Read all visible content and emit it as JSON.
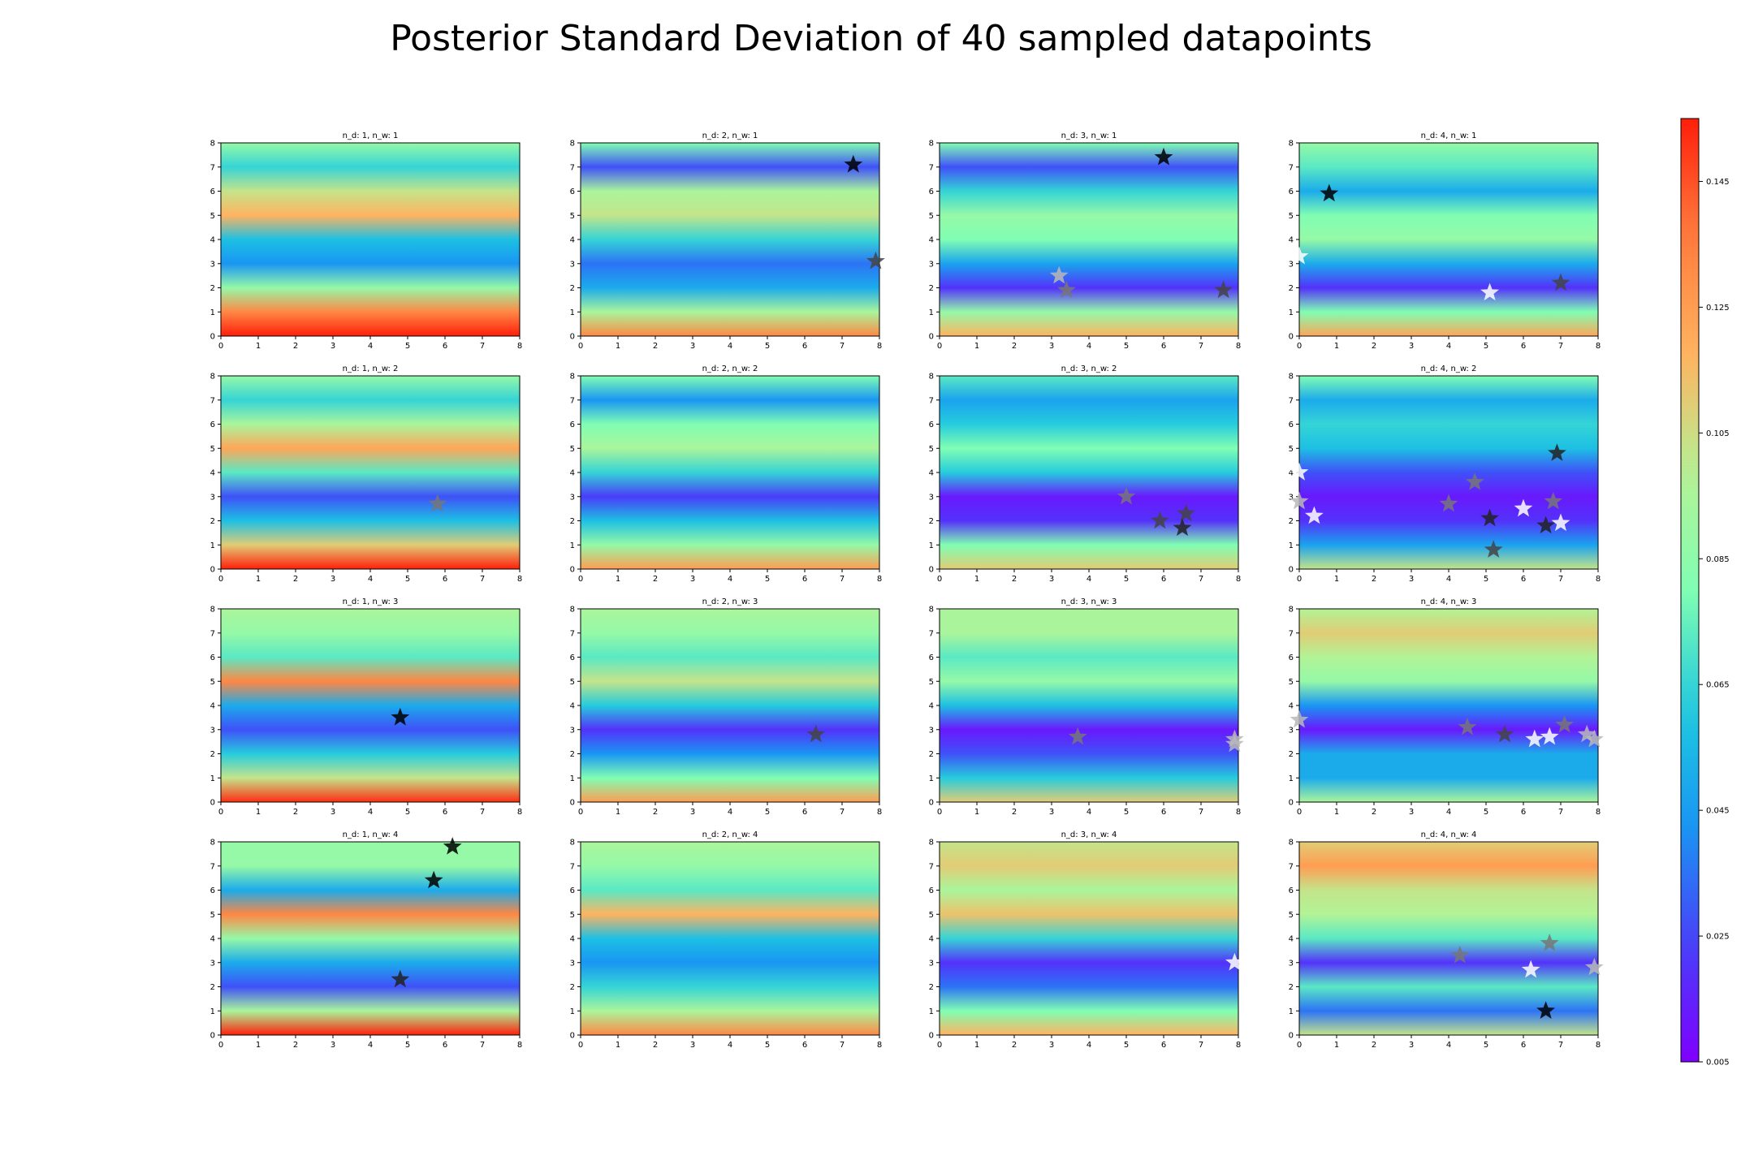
{
  "figure": {
    "title": "Posterior Standard Deviation of 40 sampled datapoints"
  },
  "colorbar": {
    "ticks": [
      "0.005",
      "0.025",
      "0.045",
      "0.065",
      "0.085",
      "0.105",
      "0.125",
      "0.145"
    ],
    "range": [
      0.005,
      0.155
    ],
    "colormap": "rainbow"
  },
  "chart_data": {
    "type": "heatmap",
    "title": "Posterior Standard Deviation of 40 sampled datapoints",
    "grid": {
      "rows": 4,
      "cols": 4
    },
    "xlim": [
      0,
      8
    ],
    "ylim": [
      0,
      8
    ],
    "x_ticks": [
      "0",
      "1",
      "2",
      "3",
      "4",
      "5",
      "6",
      "7",
      "8"
    ],
    "y_ticks": [
      "0",
      "1",
      "2",
      "3",
      "4",
      "5",
      "6",
      "7",
      "8"
    ],
    "panels": [
      {
        "title": "n_d: 1, n_w: 1",
        "points": []
      },
      {
        "title": "n_d: 2, n_w: 1",
        "points": [
          {
            "x": 7.3,
            "y": 7.1,
            "shade": "black"
          },
          {
            "x": 7.9,
            "y": 3.1,
            "shade": "dimgray"
          }
        ]
      },
      {
        "title": "n_d: 3, n_w: 1",
        "points": [
          {
            "x": 6.0,
            "y": 7.4,
            "shade": "black"
          },
          {
            "x": 3.2,
            "y": 2.5,
            "shade": "silver"
          },
          {
            "x": 3.4,
            "y": 1.9,
            "shade": "gray"
          },
          {
            "x": 7.6,
            "y": 1.9,
            "shade": "dimgray"
          }
        ]
      },
      {
        "title": "n_d: 4, n_w: 1",
        "points": [
          {
            "x": 0.8,
            "y": 5.9,
            "shade": "black"
          },
          {
            "x": 0.0,
            "y": 3.3,
            "shade": "white"
          },
          {
            "x": 5.1,
            "y": 1.8,
            "shade": "white"
          },
          {
            "x": 7.0,
            "y": 2.2,
            "shade": "dimgray"
          }
        ]
      },
      {
        "title": "n_d: 1, n_w: 2",
        "points": [
          {
            "x": 5.8,
            "y": 2.7,
            "shade": "gray"
          }
        ]
      },
      {
        "title": "n_d: 2, n_w: 2",
        "points": []
      },
      {
        "title": "n_d: 3, n_w: 2",
        "points": [
          {
            "x": 5.0,
            "y": 3.0,
            "shade": "gray"
          },
          {
            "x": 5.9,
            "y": 2.0,
            "shade": "dimgray"
          },
          {
            "x": 6.6,
            "y": 2.3,
            "shade": "dimgray"
          },
          {
            "x": 6.5,
            "y": 1.7,
            "shade": "darkgray"
          }
        ]
      },
      {
        "title": "n_d: 4, n_w: 2",
        "points": [
          {
            "x": 6.9,
            "y": 4.8,
            "shade": "darkgray"
          },
          {
            "x": 0.0,
            "y": 4.0,
            "shade": "white"
          },
          {
            "x": 0.0,
            "y": 2.8,
            "shade": "silver"
          },
          {
            "x": 0.4,
            "y": 2.2,
            "shade": "white"
          },
          {
            "x": 4.7,
            "y": 3.6,
            "shade": "gray"
          },
          {
            "x": 4.0,
            "y": 2.7,
            "shade": "gray"
          },
          {
            "x": 5.1,
            "y": 2.1,
            "shade": "darkgray"
          },
          {
            "x": 5.2,
            "y": 0.8,
            "shade": "dimgray"
          },
          {
            "x": 6.0,
            "y": 2.5,
            "shade": "white"
          },
          {
            "x": 6.8,
            "y": 2.8,
            "shade": "gray"
          },
          {
            "x": 6.6,
            "y": 1.8,
            "shade": "darkgray"
          },
          {
            "x": 7.0,
            "y": 1.9,
            "shade": "white"
          }
        ]
      },
      {
        "title": "n_d: 1, n_w: 3",
        "points": [
          {
            "x": 4.8,
            "y": 3.5,
            "shade": "black"
          }
        ]
      },
      {
        "title": "n_d: 2, n_w: 3",
        "points": [
          {
            "x": 6.3,
            "y": 2.8,
            "shade": "dimgray"
          }
        ]
      },
      {
        "title": "n_d: 3, n_w: 3",
        "points": [
          {
            "x": 3.7,
            "y": 2.7,
            "shade": "gray"
          },
          {
            "x": 7.9,
            "y": 2.6,
            "shade": "silver"
          },
          {
            "x": 7.9,
            "y": 2.4,
            "shade": "silver"
          }
        ]
      },
      {
        "title": "n_d: 4, n_w: 3",
        "points": [
          {
            "x": 0.0,
            "y": 3.4,
            "shade": "silver"
          },
          {
            "x": 4.5,
            "y": 3.1,
            "shade": "gray"
          },
          {
            "x": 5.5,
            "y": 2.8,
            "shade": "dimgray"
          },
          {
            "x": 6.3,
            "y": 2.6,
            "shade": "white"
          },
          {
            "x": 6.7,
            "y": 2.7,
            "shade": "white"
          },
          {
            "x": 7.1,
            "y": 3.2,
            "shade": "gray"
          },
          {
            "x": 7.7,
            "y": 2.8,
            "shade": "silver"
          },
          {
            "x": 7.9,
            "y": 2.6,
            "shade": "silver"
          }
        ]
      },
      {
        "title": "n_d: 1, n_w: 4",
        "points": [
          {
            "x": 6.2,
            "y": 7.8,
            "shade": "black"
          },
          {
            "x": 5.7,
            "y": 6.4,
            "shade": "black"
          },
          {
            "x": 4.8,
            "y": 2.3,
            "shade": "darkgray"
          }
        ]
      },
      {
        "title": "n_d: 2, n_w: 4",
        "points": []
      },
      {
        "title": "n_d: 3, n_w: 4",
        "points": [
          {
            "x": 7.9,
            "y": 3.0,
            "shade": "white"
          }
        ]
      },
      {
        "title": "n_d: 4, n_w: 4",
        "points": [
          {
            "x": 4.3,
            "y": 3.3,
            "shade": "gray"
          },
          {
            "x": 6.7,
            "y": 3.8,
            "shade": "gray"
          },
          {
            "x": 6.2,
            "y": 2.7,
            "shade": "white"
          },
          {
            "x": 7.9,
            "y": 2.8,
            "shade": "silver"
          },
          {
            "x": 6.6,
            "y": 1.0,
            "shade": "black"
          }
        ]
      }
    ]
  }
}
